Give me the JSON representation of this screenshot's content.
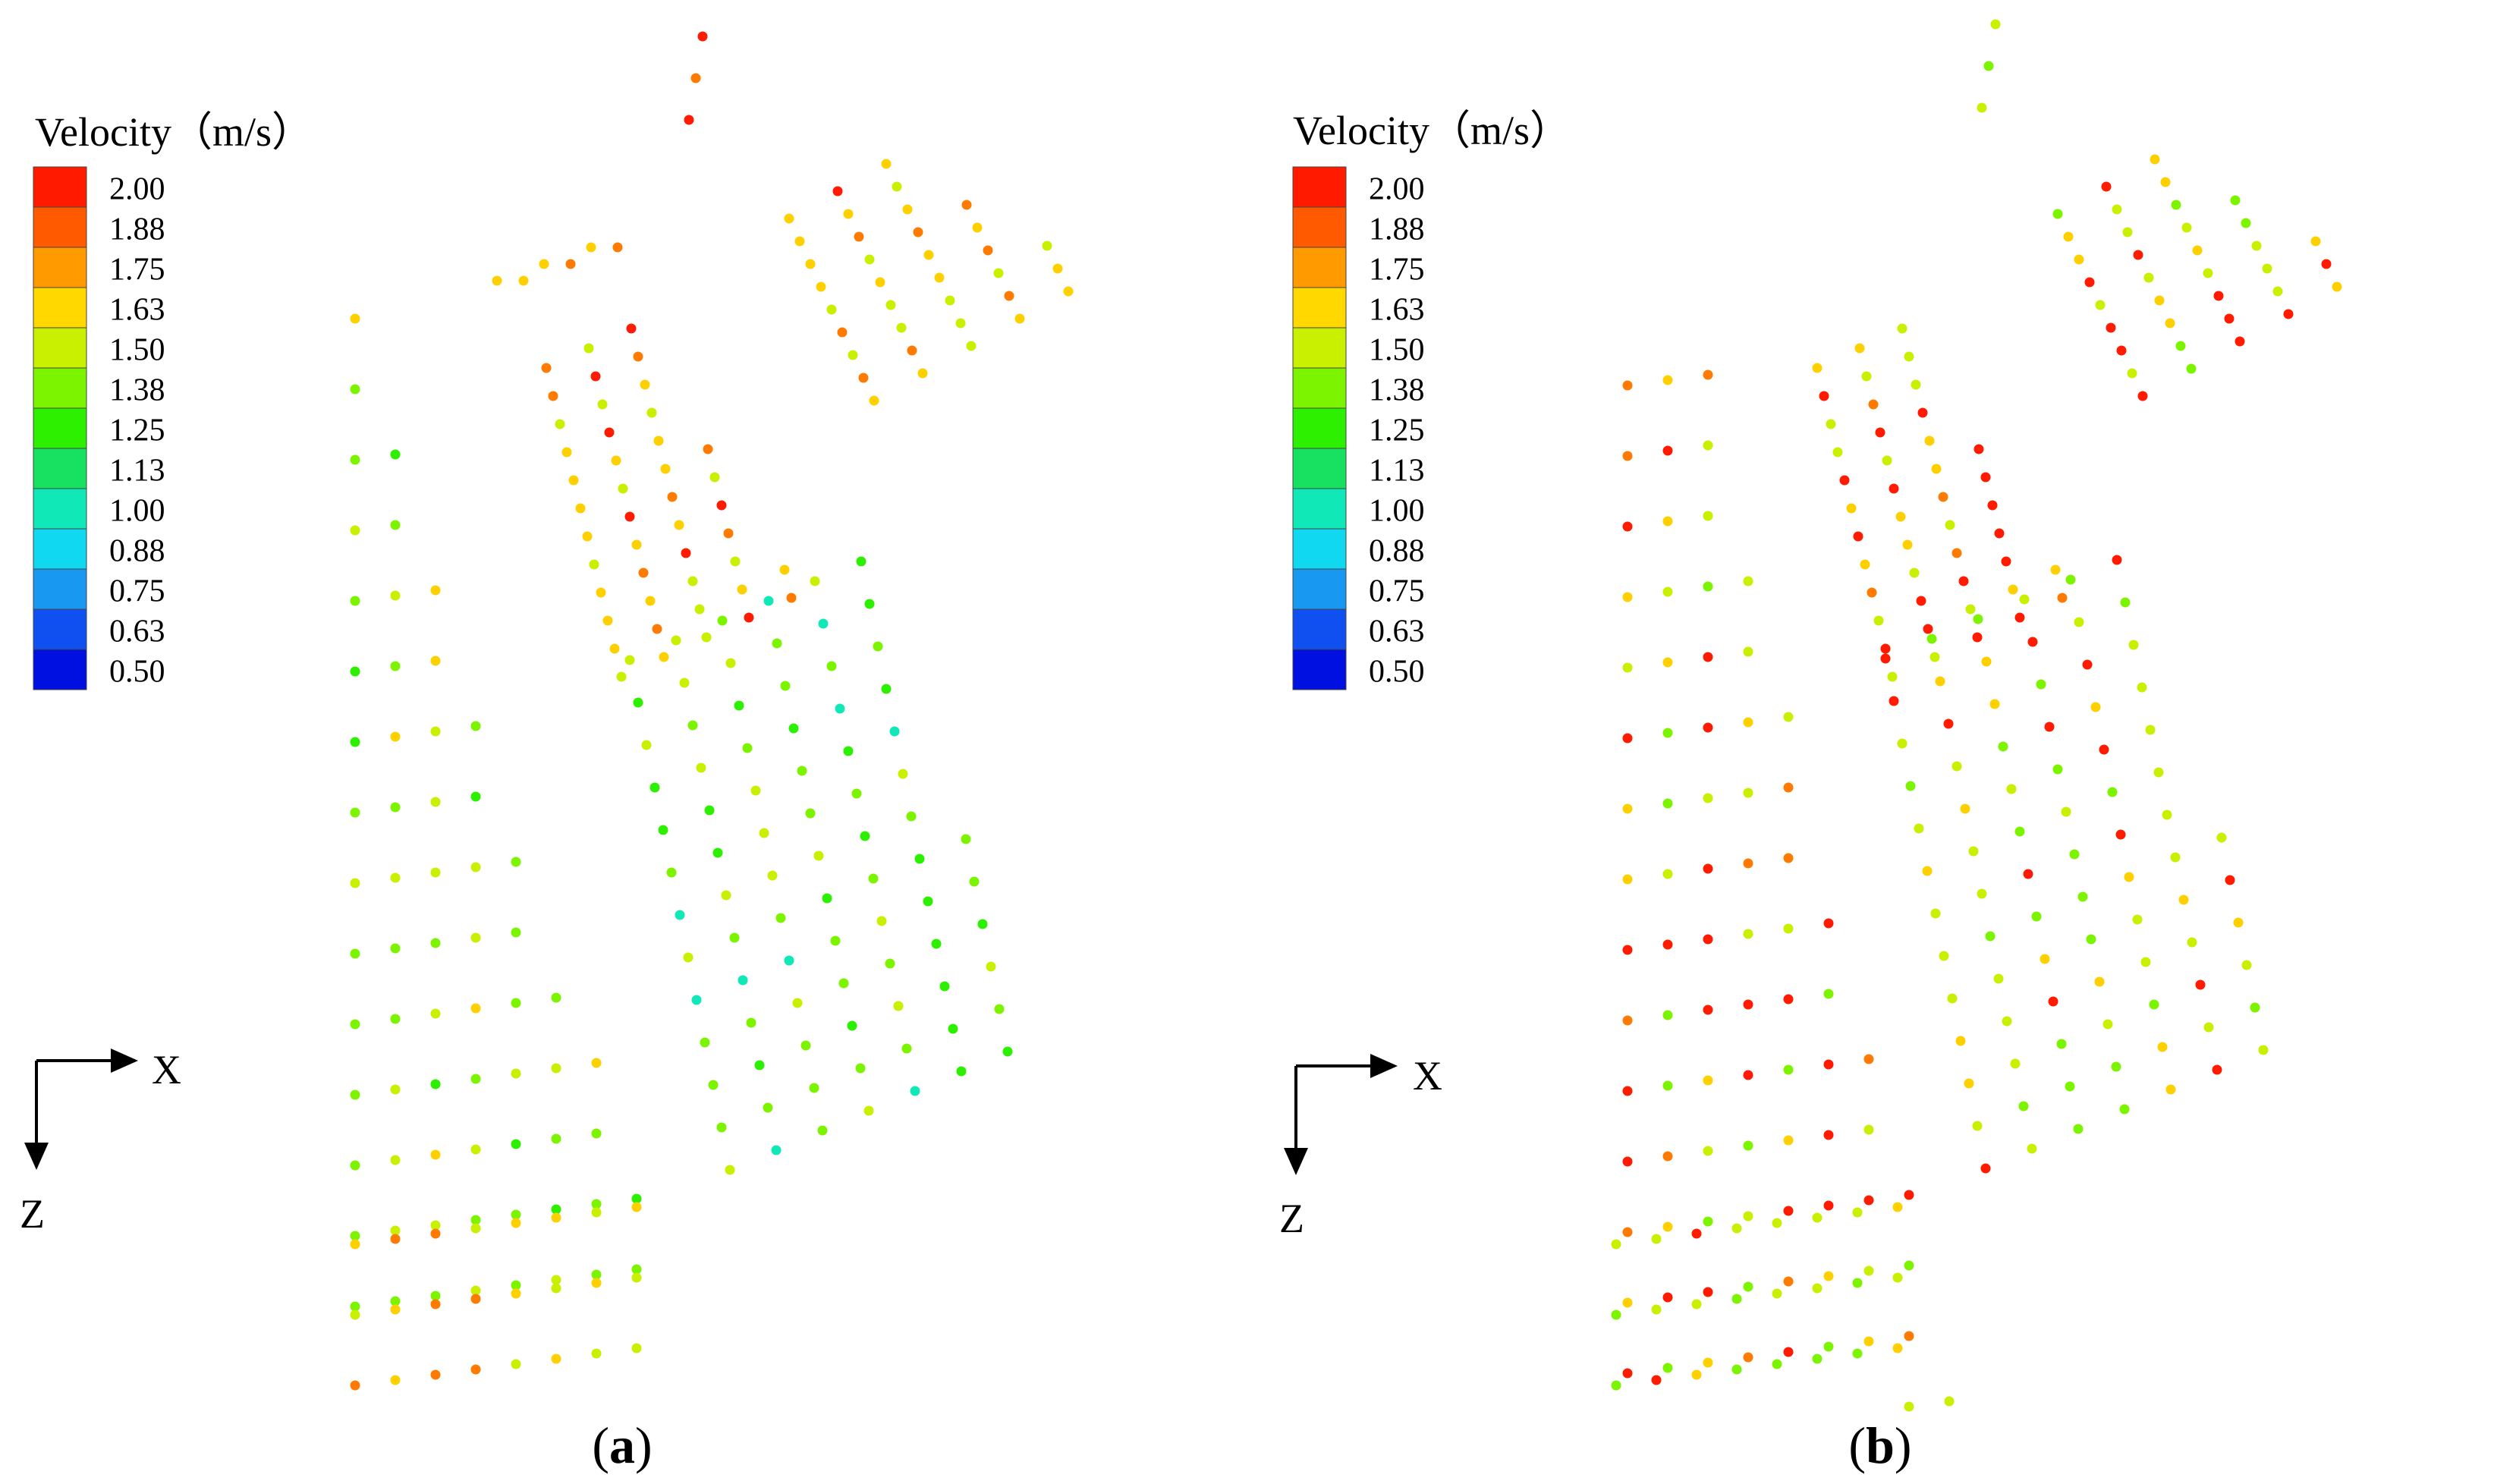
{
  "panels": [
    {
      "id": "a",
      "label": "a",
      "legend": {
        "title": "Velocity（m/s）",
        "levels": [
          "2.00",
          "1.88",
          "1.75",
          "1.63",
          "1.50",
          "1.38",
          "1.25",
          "1.13",
          "1.00",
          "0.88",
          "0.75",
          "0.63",
          "0.50"
        ],
        "colors": [
          "#ff1a00",
          "#ff5a00",
          "#ff9a00",
          "#ffd800",
          "#c8f000",
          "#7cf400",
          "#2cf000",
          "#18e060",
          "#10e8b8",
          "#10d8f0",
          "#1898f0",
          "#1050f0",
          "#0010e0"
        ]
      },
      "axes": {
        "x_label": "X",
        "z_label": "Z"
      }
    },
    {
      "id": "b",
      "label": "b",
      "legend": {
        "title": "Velocity（m/s）",
        "levels": [
          "2.00",
          "1.88",
          "1.75",
          "1.63",
          "1.50",
          "1.38",
          "1.25",
          "1.13",
          "1.00",
          "0.88",
          "0.75",
          "0.63",
          "0.50"
        ],
        "colors": [
          "#ff1a00",
          "#ff5a00",
          "#ff9a00",
          "#ffd800",
          "#c8f000",
          "#7cf400",
          "#2cf000",
          "#18e060",
          "#10e8b8",
          "#10d8f0",
          "#1898f0",
          "#1050f0",
          "#0010e0"
        ]
      },
      "axes": {
        "x_label": "X",
        "z_label": "Z"
      }
    }
  ]
}
